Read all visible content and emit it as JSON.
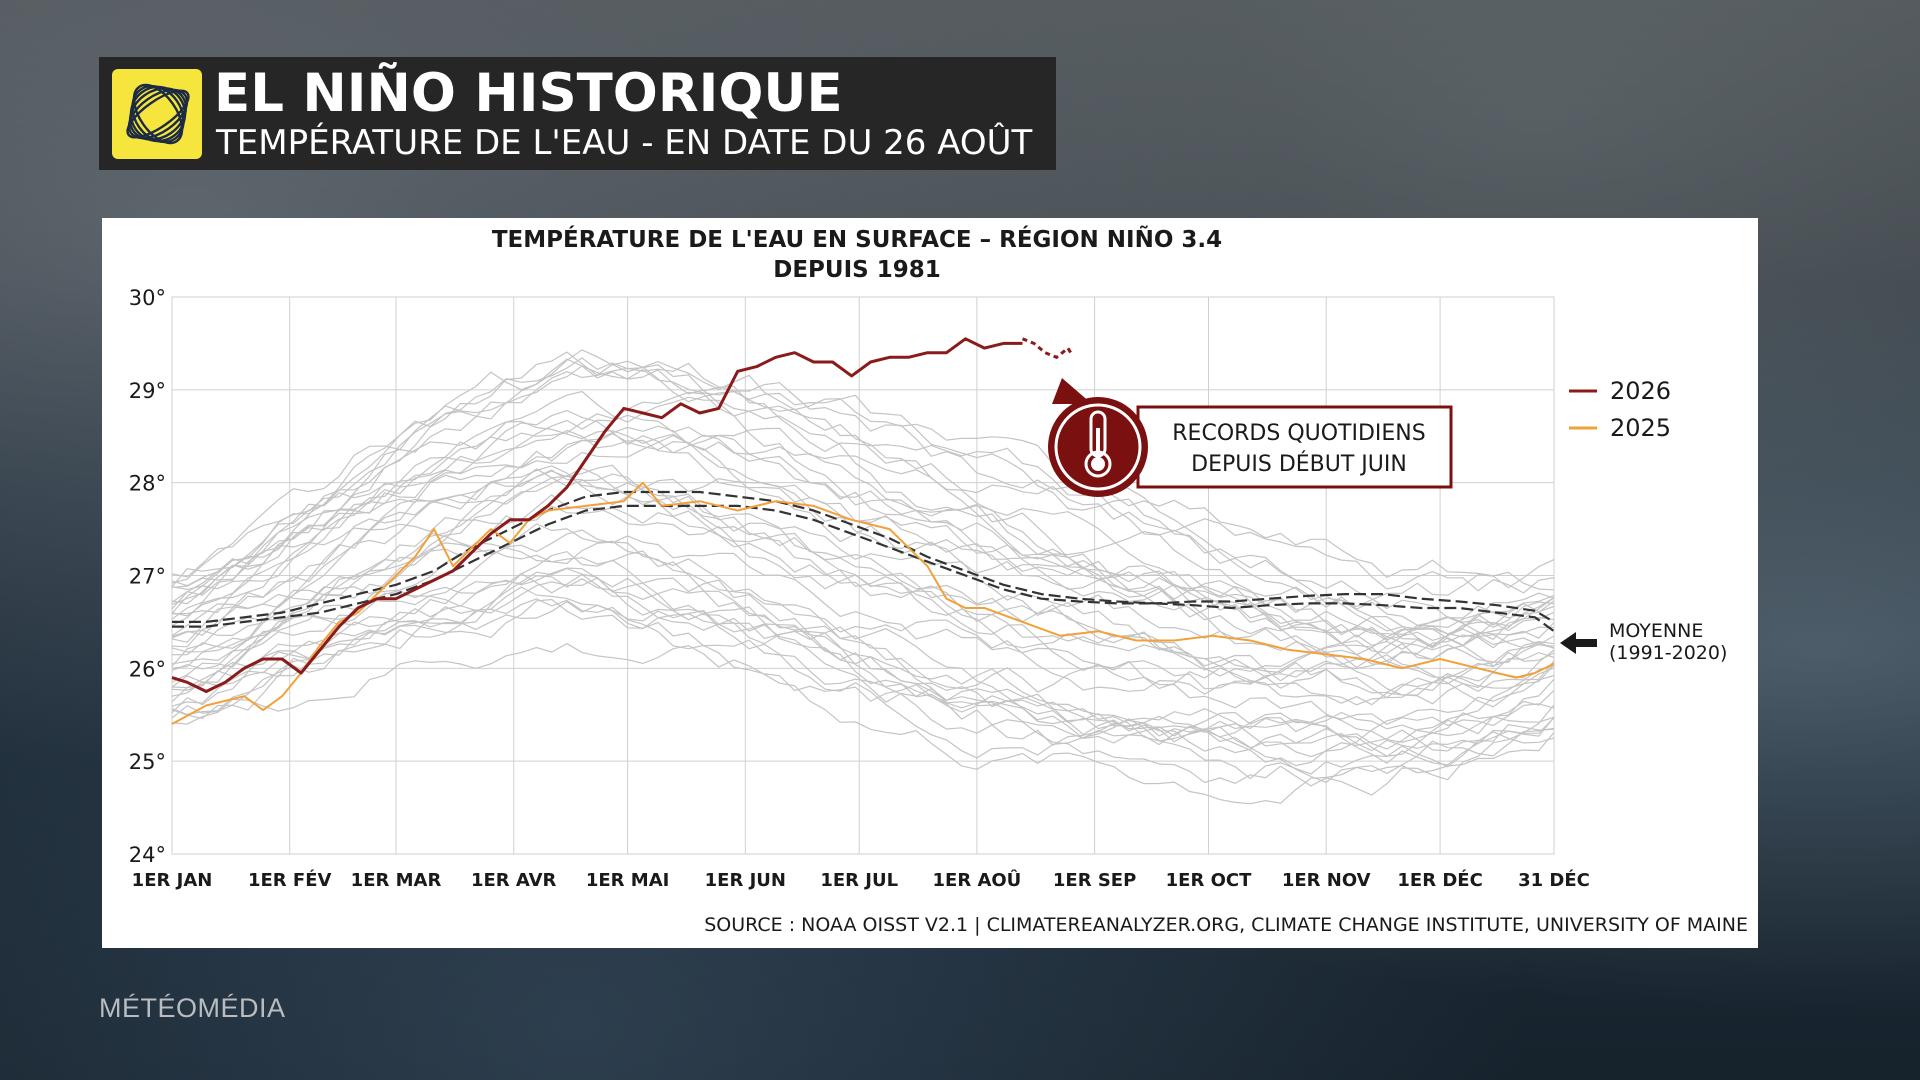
{
  "header": {
    "title": "EL NIÑO HISTORIQUE",
    "subtitle": "TEMPÉRATURE DE L'EAU - EN DATE DU 26 AOÛT"
  },
  "brand": "MÉTÉOMÉDIA",
  "chart_data": {
    "type": "line",
    "title": "TEMPÉRATURE DE L'EAU EN SURFACE – RÉGION NIÑO 3.4",
    "subtitle": "DEPUIS 1981",
    "source": "SOURCE : NOAA OISST V2.1 | CLIMATEREANALYZER.ORG, CLIMATE CHANGE INSTITUTE, UNIVERSITY OF MAINE",
    "ylim": [
      24,
      30
    ],
    "y_ticks": [
      "30°",
      "29°",
      "28°",
      "27°",
      "26°",
      "25°",
      "24°"
    ],
    "y_tick_values": [
      30,
      29,
      28,
      27,
      26,
      25,
      24
    ],
    "x_ticks": [
      "1ER JAN",
      "1ER FÉV",
      "1ER MAR",
      "1ER AVR",
      "1ER MAI",
      "1ER JUN",
      "1ER JUL",
      "1ER AOÛ",
      "1ER SEP",
      "1ER OCT",
      "1ER NOV",
      "1ER DÉC",
      "31 DÉC"
    ],
    "x_tick_days": [
      1,
      32,
      60,
      91,
      121,
      152,
      182,
      213,
      244,
      274,
      305,
      335,
      365
    ],
    "xlim": [
      1,
      365
    ],
    "grid": true,
    "legend": {
      "position": "right",
      "entries": [
        {
          "name": "2026",
          "color": "#8b1a1a"
        },
        {
          "name": "2025",
          "color": "#f2a13a"
        }
      ]
    },
    "annotation": {
      "text_line1": "RECORDS QUOTIDIENS",
      "text_line2": "DEPUIS DÉBUT JUIN",
      "border_color": "#7a1010",
      "icon": "thermometer-icon"
    },
    "average_label": {
      "line1": "MOYENNE",
      "line2": "(1991-2020)",
      "icon": "arrow-left-icon"
    },
    "historical_color": "#c4c4c4",
    "series": [
      {
        "name": "2026",
        "color": "#8b1a1a",
        "style": "solid",
        "x": [
          1,
          5,
          10,
          15,
          20,
          25,
          30,
          35,
          40,
          45,
          50,
          55,
          60,
          65,
          70,
          75,
          80,
          85,
          90,
          95,
          100,
          105,
          110,
          115,
          120,
          125,
          130,
          135,
          140,
          145,
          150,
          155,
          160,
          165,
          170,
          175,
          180,
          185,
          190,
          195,
          200,
          205,
          210,
          215,
          220,
          225
        ],
        "y": [
          25.9,
          25.85,
          25.75,
          25.85,
          26.0,
          26.1,
          26.1,
          25.95,
          26.2,
          26.45,
          26.65,
          26.75,
          26.75,
          26.85,
          26.95,
          27.05,
          27.25,
          27.45,
          27.6,
          27.6,
          27.75,
          27.95,
          28.25,
          28.55,
          28.8,
          28.75,
          28.7,
          28.85,
          28.75,
          28.8,
          29.2,
          29.25,
          29.35,
          29.4,
          29.3,
          29.3,
          29.15,
          29.3,
          29.35,
          29.35,
          29.4,
          29.4,
          29.55,
          29.45,
          29.5,
          29.5
        ]
      },
      {
        "name": "2026-recent",
        "color": "#8b1a1a",
        "style": "dashed",
        "x": [
          225,
          228,
          231,
          234,
          237,
          238
        ],
        "y": [
          29.55,
          29.5,
          29.4,
          29.35,
          29.45,
          29.38
        ]
      },
      {
        "name": "2025",
        "color": "#f2a13a",
        "style": "solid",
        "x": [
          1,
          10,
          20,
          25,
          30,
          35,
          40,
          45,
          50,
          55,
          60,
          65,
          70,
          75,
          80,
          85,
          90,
          95,
          100,
          110,
          120,
          125,
          130,
          140,
          150,
          160,
          170,
          180,
          190,
          200,
          205,
          210,
          215,
          225,
          235,
          245,
          255,
          265,
          275,
          285,
          295,
          305,
          315,
          325,
          335,
          345,
          355,
          360,
          365
        ],
        "y": [
          25.4,
          25.6,
          25.7,
          25.55,
          25.7,
          25.95,
          26.25,
          26.5,
          26.6,
          26.8,
          27.0,
          27.2,
          27.5,
          27.1,
          27.3,
          27.5,
          27.35,
          27.6,
          27.7,
          27.75,
          27.8,
          28.0,
          27.75,
          27.8,
          27.7,
          27.8,
          27.75,
          27.6,
          27.5,
          27.1,
          26.75,
          26.65,
          26.65,
          26.5,
          26.35,
          26.4,
          26.3,
          26.3,
          26.35,
          26.3,
          26.2,
          26.15,
          26.1,
          26.0,
          26.1,
          26.0,
          25.9,
          25.95,
          26.05
        ]
      },
      {
        "name": "MOYENNE (1991-2020) A",
        "color": "#333333",
        "style": "dashed",
        "x": [
          1,
          10,
          20,
          30,
          40,
          50,
          60,
          70,
          80,
          90,
          100,
          110,
          120,
          130,
          140,
          150,
          160,
          170,
          180,
          190,
          200,
          210,
          220,
          230,
          240,
          250,
          260,
          270,
          280,
          290,
          300,
          310,
          320,
          330,
          340,
          350,
          360,
          365
        ],
        "y": [
          26.45,
          26.45,
          26.5,
          26.55,
          26.6,
          26.7,
          26.8,
          26.95,
          27.15,
          27.35,
          27.55,
          27.7,
          27.75,
          27.75,
          27.75,
          27.75,
          27.7,
          27.6,
          27.45,
          27.3,
          27.15,
          27.0,
          26.85,
          26.75,
          26.72,
          26.7,
          26.7,
          26.68,
          26.65,
          26.68,
          26.7,
          26.7,
          26.68,
          26.65,
          26.65,
          26.6,
          26.55,
          26.4
        ]
      },
      {
        "name": "MOYENNE (1991-2020) B",
        "color": "#333333",
        "style": "dashed",
        "x": [
          1,
          10,
          20,
          30,
          40,
          50,
          60,
          70,
          80,
          90,
          100,
          110,
          120,
          130,
          140,
          150,
          160,
          170,
          180,
          190,
          200,
          210,
          220,
          230,
          240,
          250,
          260,
          270,
          280,
          290,
          300,
          310,
          320,
          330,
          340,
          350,
          360,
          365
        ],
        "y": [
          26.5,
          26.5,
          26.55,
          26.6,
          26.7,
          26.8,
          26.9,
          27.05,
          27.3,
          27.5,
          27.7,
          27.85,
          27.9,
          27.9,
          27.9,
          27.85,
          27.8,
          27.7,
          27.55,
          27.4,
          27.2,
          27.05,
          26.9,
          26.8,
          26.75,
          26.72,
          26.7,
          26.72,
          26.72,
          26.75,
          26.78,
          26.8,
          26.8,
          26.75,
          26.72,
          26.68,
          26.62,
          26.5
        ]
      }
    ]
  }
}
